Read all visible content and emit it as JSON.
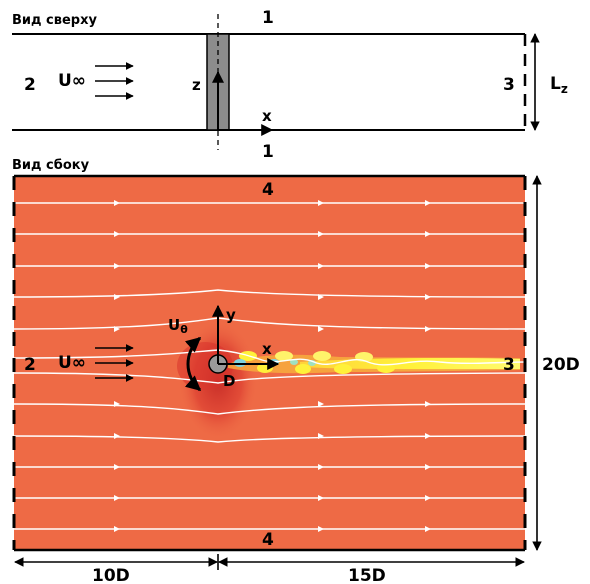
{
  "top_view": {
    "title": "Вид сверху",
    "boundary_top": "1",
    "boundary_bottom": "1",
    "inlet": "2",
    "outlet": "3",
    "velocity": "U∞",
    "axis_z": "z",
    "axis_x": "x",
    "span_label": "L",
    "span_sub": "z"
  },
  "side_view": {
    "title": "Вид сбоку",
    "boundary_top": "4",
    "boundary_bottom": "4",
    "inlet": "2",
    "outlet": "3",
    "velocity": "U∞",
    "rotation": "U",
    "rotation_sub": "θ",
    "axis_y": "y",
    "axis_x": "x",
    "diameter": "D",
    "height": "20D",
    "upstream": "10D",
    "downstream": "15D"
  },
  "colors": {
    "field_background": "#ee6a45",
    "streamline": "#ffffff",
    "cylinder_strip": "#8c8c8c",
    "wake_hot": "#fff13a",
    "wake_cool": "#7fd4e0",
    "stagnation": "#d8332c"
  }
}
